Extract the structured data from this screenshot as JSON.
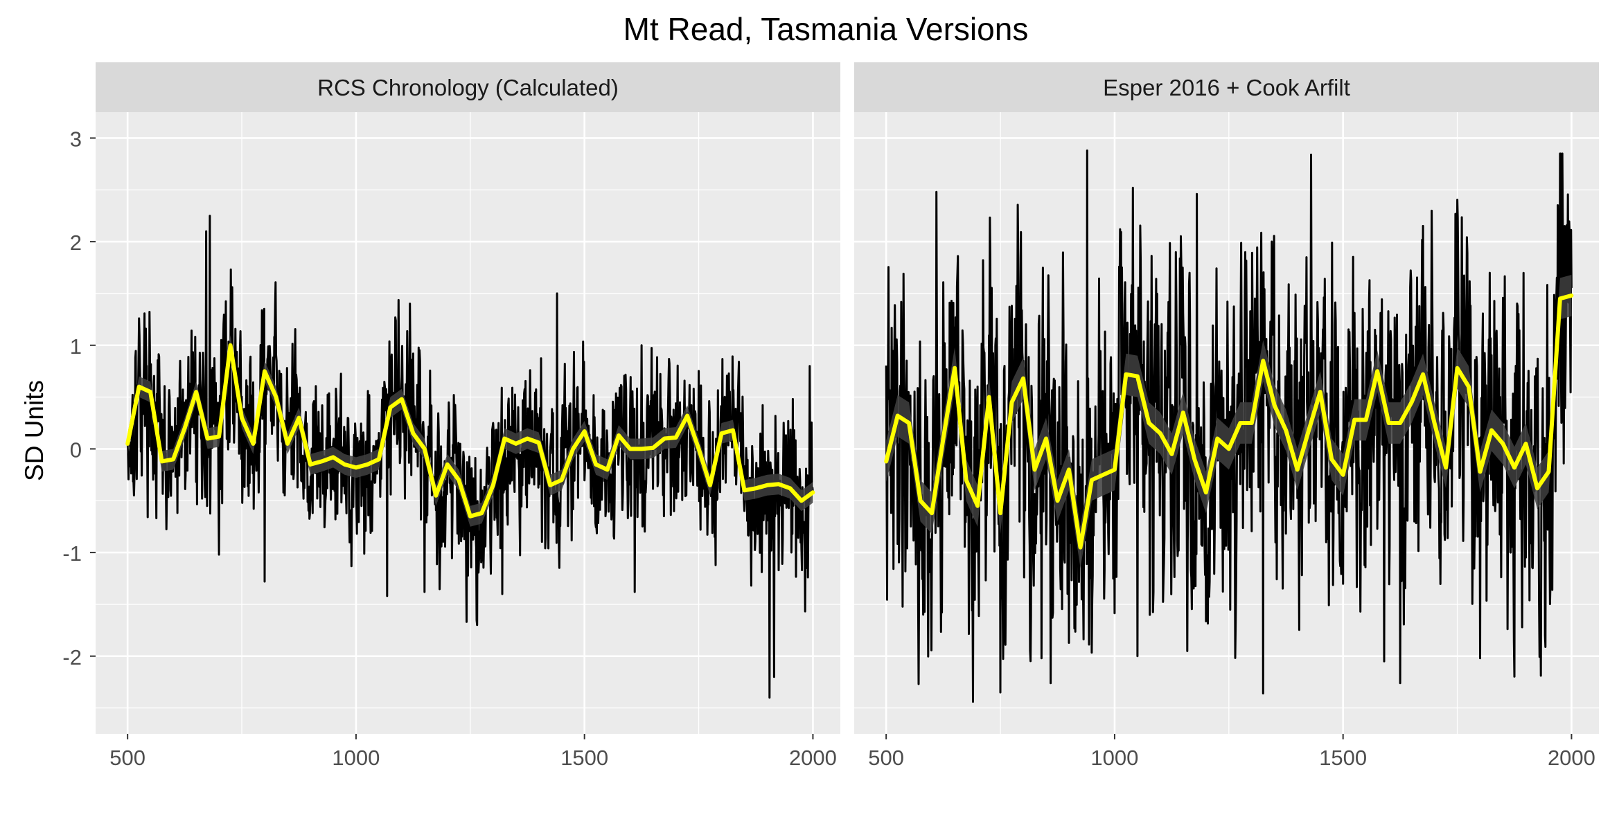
{
  "chart_data": {
    "type": "line",
    "title": "Mt Read, Tasmania Versions",
    "ylabel": "SD Units",
    "xlabel": "",
    "xlim": [
      430,
      2060
    ],
    "ylim": [
      -2.75,
      3.25
    ],
    "x_ticks": [
      500,
      1000,
      1500,
      2000
    ],
    "y_ticks": [
      -2,
      -1,
      0,
      1,
      2,
      3
    ],
    "grid": true,
    "colors": {
      "panel_background": "#ebebeb",
      "strip_background": "#d9d9d9",
      "grid_major": "#ffffff",
      "raw_series": "#000000",
      "smooth_band": "#404040",
      "smooth_line": "#ffff00",
      "axis_text": "#4d4d4d"
    },
    "panels": [
      {
        "strip_label": "RCS Chronology (Calculated)",
        "smooth": {
          "x": [
            500,
            525,
            550,
            575,
            600,
            625,
            650,
            675,
            700,
            725,
            750,
            775,
            800,
            825,
            850,
            875,
            900,
            925,
            950,
            975,
            1000,
            1025,
            1050,
            1075,
            1100,
            1125,
            1150,
            1175,
            1200,
            1225,
            1250,
            1275,
            1300,
            1325,
            1350,
            1375,
            1400,
            1425,
            1450,
            1475,
            1500,
            1525,
            1550,
            1575,
            1600,
            1625,
            1650,
            1675,
            1700,
            1725,
            1750,
            1775,
            1800,
            1825,
            1850,
            1875,
            1900,
            1925,
            1950,
            1975,
            2000
          ],
          "y": [
            0.05,
            0.6,
            0.55,
            -0.12,
            -0.1,
            0.2,
            0.55,
            0.1,
            0.12,
            1.0,
            0.3,
            0.05,
            0.75,
            0.5,
            0.05,
            0.3,
            -0.15,
            -0.12,
            -0.08,
            -0.15,
            -0.18,
            -0.15,
            -0.1,
            0.4,
            0.48,
            0.15,
            0.0,
            -0.45,
            -0.15,
            -0.3,
            -0.65,
            -0.62,
            -0.35,
            0.1,
            0.05,
            0.1,
            0.06,
            -0.35,
            -0.3,
            0.0,
            0.17,
            -0.15,
            -0.2,
            0.13,
            0.0,
            0.0,
            0.01,
            0.1,
            0.11,
            0.32,
            0.0,
            -0.35,
            0.15,
            0.18,
            -0.4,
            -0.38,
            -0.35,
            -0.34,
            -0.38,
            -0.5,
            -0.42
          ],
          "band_halfwidth": 0.1
        },
        "raw_seed": 17,
        "raw_noise_sd": 0.38,
        "raw_extremes": [
          {
            "year": 680,
            "value": 2.25
          },
          {
            "year": 672,
            "value": 2.1
          },
          {
            "year": 1440,
            "value": 1.5
          },
          {
            "year": 1905,
            "value": -2.4
          },
          {
            "year": 1915,
            "value": -2.2
          },
          {
            "year": 1068,
            "value": -1.42
          },
          {
            "year": 1150,
            "value": -1.38
          },
          {
            "year": 1320,
            "value": -1.4
          },
          {
            "year": 1610,
            "value": -1.38
          },
          {
            "year": 800,
            "value": -1.28
          },
          {
            "year": 700,
            "value": -1.02
          },
          {
            "year": 1993,
            "value": 0.8
          }
        ]
      },
      {
        "strip_label": "Esper 2016 + Cook Arfilt",
        "smooth": {
          "x": [
            500,
            525,
            550,
            575,
            600,
            625,
            650,
            675,
            700,
            725,
            750,
            775,
            800,
            825,
            850,
            875,
            900,
            925,
            950,
            975,
            1000,
            1025,
            1050,
            1075,
            1100,
            1125,
            1150,
            1175,
            1200,
            1225,
            1250,
            1275,
            1300,
            1325,
            1350,
            1375,
            1400,
            1425,
            1450,
            1475,
            1500,
            1525,
            1550,
            1575,
            1600,
            1625,
            1650,
            1675,
            1700,
            1725,
            1750,
            1775,
            1800,
            1825,
            1850,
            1875,
            1900,
            1925,
            1950,
            1975,
            2000
          ],
          "y": [
            -0.12,
            0.32,
            0.25,
            -0.5,
            -0.62,
            0.1,
            0.78,
            -0.3,
            -0.55,
            0.5,
            -0.62,
            0.45,
            0.68,
            -0.2,
            0.1,
            -0.5,
            -0.2,
            -0.95,
            -0.3,
            -0.25,
            -0.2,
            0.72,
            0.7,
            0.25,
            0.15,
            -0.05,
            0.35,
            -0.1,
            -0.42,
            0.1,
            0.0,
            0.25,
            0.25,
            0.85,
            0.42,
            0.18,
            -0.2,
            0.18,
            0.55,
            -0.1,
            -0.25,
            0.28,
            0.28,
            0.75,
            0.25,
            0.25,
            0.45,
            0.72,
            0.25,
            -0.18,
            0.78,
            0.6,
            -0.22,
            0.18,
            0.05,
            -0.18,
            0.05,
            -0.38,
            -0.22,
            1.45,
            1.48
          ],
          "band_halfwidth": 0.2
        },
        "raw_seed": 41,
        "raw_noise_sd": 0.72,
        "raw_extremes": [
          {
            "year": 940,
            "value": 2.88
          },
          {
            "year": 1430,
            "value": 2.84
          },
          {
            "year": 610,
            "value": 2.48
          },
          {
            "year": 1180,
            "value": 2.46
          },
          {
            "year": 1040,
            "value": 2.52
          },
          {
            "year": 1990,
            "value": 2.16
          },
          {
            "year": 1985,
            "value": 2.15
          },
          {
            "year": 1325,
            "value": -2.36
          },
          {
            "year": 860,
            "value": -2.26
          },
          {
            "year": 1625,
            "value": -2.26
          },
          {
            "year": 690,
            "value": -2.44
          },
          {
            "year": 840,
            "value": -2.02
          },
          {
            "year": 1590,
            "value": -2.05
          },
          {
            "year": 1800,
            "value": -2.02
          },
          {
            "year": 750,
            "value": -2.35
          },
          {
            "year": 1050,
            "value": -2.0
          }
        ]
      }
    ]
  }
}
